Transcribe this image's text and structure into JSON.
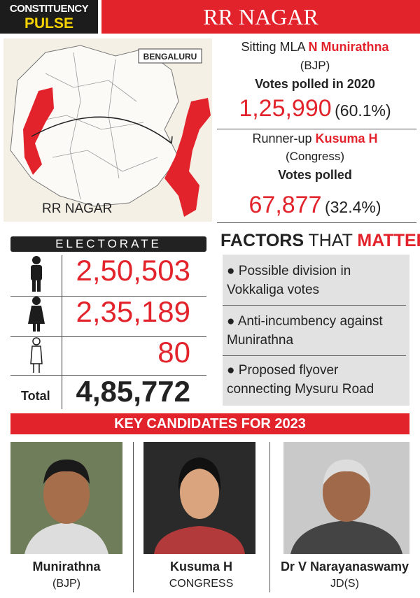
{
  "header": {
    "badge_top": "CONSTITUENCY",
    "badge_bottom": "PULSE",
    "title": "RR NAGAR"
  },
  "map": {
    "city_label": "BENGALURU",
    "area_label": "RR NAGAR"
  },
  "sitting": {
    "prefix": "Sitting MLA",
    "name": "N Munirathna",
    "party": "(BJP)",
    "votes_label": "Votes polled in 2020",
    "votes": "1,25,990",
    "share": "(60.1%)"
  },
  "runner_up": {
    "prefix": "Runner-up",
    "name": "Kusuma H",
    "party": "(Congress)",
    "votes_label": "Votes polled",
    "votes": "67,877",
    "share": "(32.4%)"
  },
  "electorate": {
    "title": "ELECTORATE",
    "rows": [
      "2,50,503",
      "2,35,189",
      "80"
    ],
    "total_label": "Total",
    "total": "4,85,772"
  },
  "factors": {
    "title_1": "FACTORS",
    "title_2": "THAT",
    "title_3": "MATTER",
    "items": [
      "Possible division in Vokkaliga votes",
      "Anti-incumbency against Munirathna",
      "Proposed flyover connecting Mysuru Road"
    ]
  },
  "candidates": {
    "title": "KEY CANDIDATES FOR 2023",
    "list": [
      {
        "name": "Munirathna",
        "party": "(BJP)"
      },
      {
        "name": "Kusuma H",
        "party": "CONGRESS"
      },
      {
        "name": "Dr V Narayanaswamy",
        "party": "JD(S)"
      }
    ]
  }
}
